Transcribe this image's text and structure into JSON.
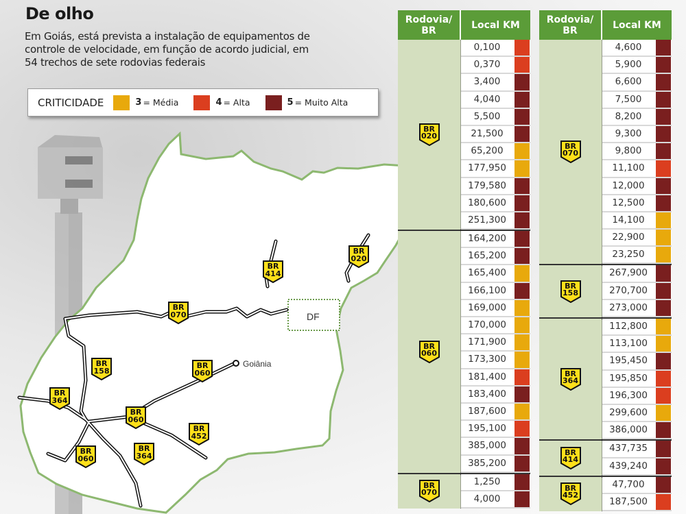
{
  "title": "De olho",
  "subtitle": "Em Goiás, está prevista a instalação de equipamentos de controle de velocidade, em função de acordo judicial, em 54 trechos de sete rodovias federais",
  "legend": {
    "title": "CRITICIDADE",
    "items": [
      {
        "level": "3",
        "label": "= Média",
        "color": "#e8a90c"
      },
      {
        "level": "4",
        "label": "= Alta",
        "color": "#db3e1f"
      },
      {
        "level": "5",
        "label": "= Muito Alta",
        "color": "#7a1f1f"
      }
    ]
  },
  "colors": {
    "3": "#e8a90c",
    "4": "#db3e1f",
    "5": "#7a1f1f",
    "header": "#5b9c38",
    "badge": "#ffe01a",
    "state_border": "#8db870"
  },
  "map": {
    "df_label": "DF",
    "city_label": "Goiânia",
    "road_badges": [
      "BR 070",
      "BR 414",
      "BR 020",
      "BR 158",
      "BR 060",
      "BR 364",
      "BR 060",
      "BR 452",
      "BR 364",
      "BR 060"
    ]
  },
  "tables": [
    {
      "headers": [
        "Rodovia/ BR",
        "Local KM"
      ],
      "groups": [
        {
          "road": "020",
          "rows": [
            [
              "0,100",
              4
            ],
            [
              "0,370",
              4
            ],
            [
              "3,400",
              5
            ],
            [
              "4,040",
              5
            ],
            [
              "5,500",
              5
            ],
            [
              "21,500",
              5
            ],
            [
              "65,200",
              3
            ],
            [
              "177,950",
              3
            ],
            [
              "179,580",
              5
            ],
            [
              "180,600",
              5
            ],
            [
              "251,300",
              5
            ]
          ]
        },
        {
          "road": "060",
          "rows": [
            [
              "164,200",
              5
            ],
            [
              "165,200",
              5
            ],
            [
              "165,400",
              3
            ],
            [
              "166,100",
              5
            ],
            [
              "169,000",
              3
            ],
            [
              "170,000",
              3
            ],
            [
              "171,900",
              3
            ],
            [
              "173,300",
              3
            ],
            [
              "181,400",
              4
            ],
            [
              "183,400",
              5
            ],
            [
              "187,600",
              3
            ],
            [
              "195,100",
              4
            ],
            [
              "385,000",
              5
            ],
            [
              "385,200",
              5
            ]
          ]
        },
        {
          "road": "070",
          "rows": [
            [
              "1,250",
              5
            ],
            [
              "4,000",
              5
            ]
          ]
        }
      ]
    },
    {
      "headers": [
        "Rodovia/ BR",
        "Local KM"
      ],
      "groups": [
        {
          "road": "070",
          "rows": [
            [
              "4,600",
              5
            ],
            [
              "5,900",
              5
            ],
            [
              "6,600",
              5
            ],
            [
              "7,500",
              5
            ],
            [
              "8,200",
              5
            ],
            [
              "9,300",
              5
            ],
            [
              "9,800",
              5
            ],
            [
              "11,100",
              4
            ],
            [
              "12,000",
              5
            ],
            [
              "12,500",
              5
            ],
            [
              "14,100",
              3
            ],
            [
              "22,900",
              3
            ],
            [
              "23,250",
              3
            ]
          ]
        },
        {
          "road": "158",
          "rows": [
            [
              "267,900",
              5
            ],
            [
              "270,700",
              5
            ],
            [
              "273,000",
              5
            ]
          ]
        },
        {
          "road": "364",
          "rows": [
            [
              "112,800",
              3
            ],
            [
              "113,100",
              3
            ],
            [
              "195,450",
              5
            ],
            [
              "195,850",
              4
            ],
            [
              "196,300",
              4
            ],
            [
              "299,600",
              3
            ],
            [
              "386,000",
              5
            ]
          ]
        },
        {
          "road": "414",
          "rows": [
            [
              "437,735",
              5
            ],
            [
              "439,240",
              5
            ]
          ]
        },
        {
          "road": "452",
          "rows": [
            [
              "47,700",
              5
            ],
            [
              "187,500",
              4
            ]
          ]
        }
      ]
    }
  ]
}
